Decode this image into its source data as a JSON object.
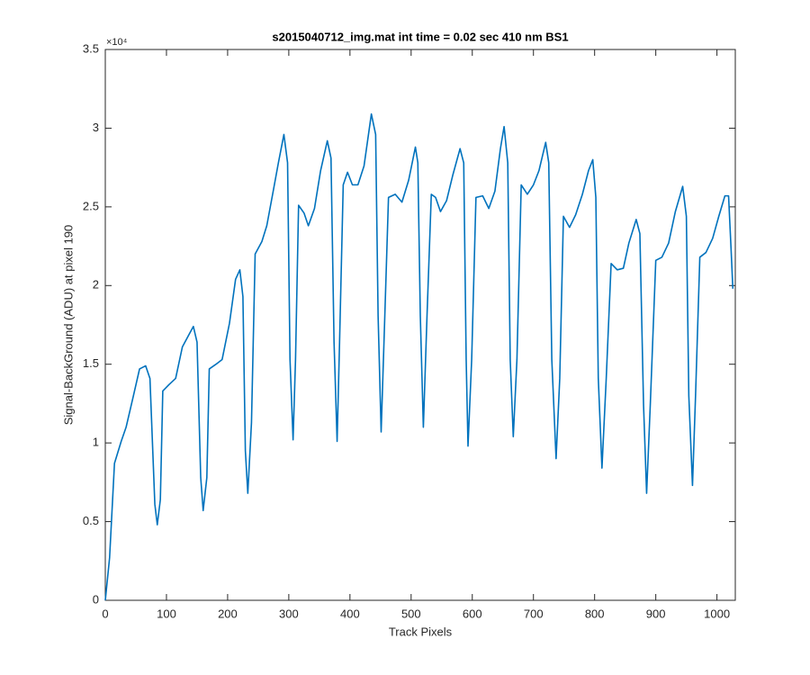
{
  "chart_data": {
    "type": "line",
    "title": "s2015040712_img.mat int time = 0.02 sec  410 nm BS1",
    "x_label": "Track Pixels",
    "y_label": "Signal-BackGround (ADU) at pixel 190",
    "y_exponent_label": "×10⁴",
    "xlim": [
      0,
      1030
    ],
    "ylim": [
      0,
      35000
    ],
    "xticks": [
      0,
      100,
      200,
      300,
      400,
      500,
      600,
      700,
      800,
      900,
      1000
    ],
    "yticks": [
      0,
      {
        "value": 5000,
        "label": "0.5"
      },
      {
        "value": 10000,
        "label": "1"
      },
      {
        "value": 15000,
        "label": "1.5"
      },
      {
        "value": 20000,
        "label": "2"
      },
      {
        "value": 25000,
        "label": "2.5"
      },
      {
        "value": 30000,
        "label": "3"
      },
      {
        "value": 35000,
        "label": "3.5"
      }
    ],
    "grid": false,
    "series": [
      {
        "color": "#0072bd",
        "x": [
          0,
          7,
          15,
          26,
          34,
          46,
          56,
          66,
          73,
          81,
          85,
          90,
          94,
          104,
          115,
          126,
          137,
          144,
          150,
          156,
          160,
          166,
          170,
          181,
          191,
          203,
          213,
          220,
          225,
          229,
          233,
          239,
          245,
          256,
          264,
          275,
          283,
          292,
          298,
          302,
          307,
          311,
          316,
          325,
          332,
          342,
          352,
          363,
          369,
          374,
          379,
          383,
          389,
          396,
          404,
          413,
          423,
          435,
          442,
          446,
          451,
          457,
          463,
          474,
          485,
          496,
          507,
          511,
          515,
          520,
          526,
          533,
          540,
          548,
          558,
          568,
          580,
          586,
          590,
          593,
          599,
          606,
          617,
          627,
          637,
          646,
          652,
          658,
          662,
          667,
          673,
          680,
          690,
          700,
          709,
          720,
          725,
          730,
          737,
          743,
          749,
          759,
          769,
          780,
          790,
          797,
          802,
          806,
          812,
          819,
          827,
          837,
          847,
          856,
          868,
          874,
          880,
          885,
          891,
          900,
          910,
          921,
          932,
          944,
          950,
          954,
          960,
          965,
          972,
          982,
          993,
          1003,
          1013,
          1019,
          1023,
          1026
        ],
        "values": [
          0,
          2700,
          8700,
          10100,
          11000,
          13000,
          14700,
          14900,
          14100,
          6100,
          4800,
          6400,
          13300,
          13700,
          14100,
          16100,
          16900,
          17400,
          16400,
          7800,
          5700,
          7800,
          14700,
          15000,
          15300,
          17600,
          20400,
          21000,
          19300,
          9500,
          6800,
          11300,
          22000,
          22800,
          23800,
          26100,
          27800,
          29600,
          27800,
          15300,
          10200,
          15300,
          25100,
          24600,
          23800,
          24900,
          27300,
          29200,
          28100,
          16400,
          10100,
          16400,
          26400,
          27200,
          26400,
          26400,
          27600,
          30900,
          29600,
          18100,
          10700,
          18100,
          25600,
          25800,
          25300,
          26700,
          28800,
          27800,
          18100,
          11000,
          18100,
          25800,
          25600,
          24700,
          25400,
          27000,
          28700,
          27800,
          15300,
          9800,
          15300,
          25600,
          25700,
          24900,
          26000,
          28700,
          30100,
          27800,
          15300,
          10400,
          15300,
          26400,
          25800,
          26400,
          27300,
          29100,
          27800,
          15300,
          9000,
          14100,
          24400,
          23700,
          24500,
          25800,
          27300,
          28000,
          25600,
          14100,
          8400,
          14100,
          21400,
          21000,
          21100,
          22700,
          24200,
          23300,
          12400,
          6800,
          12400,
          21600,
          21800,
          22700,
          24700,
          26300,
          24400,
          13000,
          7300,
          13000,
          21800,
          22100,
          23000,
          24400,
          25700,
          25700,
          22400,
          19800
        ]
      }
    ]
  }
}
